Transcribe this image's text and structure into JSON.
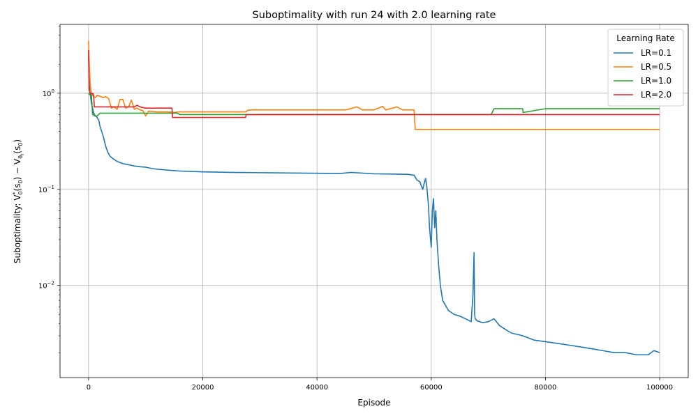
{
  "chart_data": {
    "type": "line",
    "title": "Suboptimality with run 24 with 2.0 learning rate",
    "xlabel": "Episode",
    "ylabel_main": "Suboptimality: V",
    "ylabel_sup": "*",
    "ylabel_sub_0": "0",
    "ylabel_arg1": "(s",
    "ylabel_arg1_sub": "0",
    "ylabel_mid": ") − V",
    "ylabel_sub_theta": "θ",
    "ylabel_sub_t": "t",
    "ylabel_arg2": "(s",
    "ylabel_arg2_sub": "0",
    "ylabel_end": ")",
    "y_scale": "log",
    "xlim": [
      -5000,
      105000
    ],
    "ylim": [
      0.0011,
      5.2
    ],
    "grid": true,
    "legend_title": "Learning Rate",
    "legend_placement": "top-right",
    "x_ticks": [
      0,
      20000,
      40000,
      60000,
      80000,
      100000
    ],
    "x_tick_labels": [
      "0",
      "20000",
      "40000",
      "60000",
      "80000",
      "100000"
    ],
    "y_ticks": [
      0.01,
      0.1,
      1
    ],
    "y_tick_labels": [
      {
        "base": "10",
        "exp": "−2"
      },
      {
        "base": "10",
        "exp": "−1"
      },
      {
        "base": "10",
        "exp": "0"
      }
    ],
    "series": [
      {
        "name": "LR=0.1",
        "color": "#1f77b4",
        "x": [
          0,
          100,
          200,
          350,
          500,
          700,
          900,
          1200,
          1500,
          1800,
          2000,
          2300,
          2600,
          3000,
          3400,
          3800,
          4200,
          5000,
          6000,
          7000,
          8000,
          9000,
          10000,
          11000,
          12000,
          14000,
          16000,
          20000,
          25000,
          30000,
          35000,
          40000,
          44000,
          46000,
          50000,
          54000,
          56000,
          57000,
          57500,
          58000,
          58500,
          59000,
          59200,
          59500,
          59700,
          60000,
          60200,
          60400,
          60600,
          60800,
          61000,
          61300,
          61600,
          62000,
          63000,
          64000,
          65000,
          66000,
          67000,
          67300,
          67500,
          67600,
          67700,
          68000,
          69000,
          70000,
          71000,
          72000,
          74000,
          76000,
          78000,
          80000,
          82000,
          84000,
          86000,
          88000,
          90000,
          92000,
          94000,
          96000,
          98000,
          99000,
          100000
        ],
        "values": [
          2.5,
          1.4,
          1.05,
          0.92,
          0.78,
          0.7,
          0.62,
          0.58,
          0.56,
          0.52,
          0.45,
          0.4,
          0.35,
          0.28,
          0.24,
          0.22,
          0.21,
          0.195,
          0.185,
          0.18,
          0.175,
          0.172,
          0.17,
          0.165,
          0.162,
          0.158,
          0.155,
          0.152,
          0.15,
          0.149,
          0.148,
          0.147,
          0.146,
          0.15,
          0.145,
          0.144,
          0.143,
          0.14,
          0.125,
          0.12,
          0.1,
          0.13,
          0.11,
          0.07,
          0.04,
          0.025,
          0.06,
          0.08,
          0.04,
          0.06,
          0.03,
          0.016,
          0.01,
          0.007,
          0.0055,
          0.005,
          0.0048,
          0.0045,
          0.0042,
          0.008,
          0.022,
          0.005,
          0.0045,
          0.0043,
          0.0041,
          0.0042,
          0.0045,
          0.0038,
          0.0032,
          0.003,
          0.0027,
          0.0026,
          0.0025,
          0.0024,
          0.0023,
          0.0022,
          0.0021,
          0.002,
          0.002,
          0.0019,
          0.0019,
          0.0021,
          0.002
        ]
      },
      {
        "name": "LR=0.5",
        "color": "#ff7f0e",
        "x": [
          0,
          100,
          200,
          300,
          500,
          700,
          900,
          1200,
          1500,
          2000,
          2500,
          3000,
          3500,
          4000,
          4500,
          5000,
          5500,
          6000,
          6500,
          7000,
          7500,
          8000,
          8500,
          9000,
          9500,
          10000,
          10500,
          12000,
          14000,
          15000,
          16000,
          20000,
          25000,
          27500,
          28000,
          30000,
          35000,
          38000,
          40000,
          45000,
          47000,
          48000,
          50000,
          51500,
          52000,
          54000,
          55000,
          56000,
          57000,
          57200,
          60000,
          65000,
          70000,
          75000,
          80000,
          85000,
          90000,
          95000,
          100000
        ],
        "values": [
          3.5,
          2.2,
          1.6,
          1.2,
          1.0,
          0.95,
          0.92,
          0.9,
          0.95,
          0.93,
          0.9,
          0.92,
          0.88,
          0.7,
          0.72,
          0.68,
          0.86,
          0.86,
          0.7,
          0.72,
          0.85,
          0.68,
          0.7,
          0.67,
          0.66,
          0.58,
          0.65,
          0.64,
          0.64,
          0.63,
          0.64,
          0.64,
          0.64,
          0.64,
          0.67,
          0.67,
          0.67,
          0.67,
          0.67,
          0.67,
          0.72,
          0.67,
          0.67,
          0.73,
          0.67,
          0.72,
          0.67,
          0.67,
          0.67,
          0.42,
          0.42,
          0.42,
          0.42,
          0.42,
          0.42,
          0.42,
          0.42,
          0.42,
          0.42
        ]
      },
      {
        "name": "LR=1.0",
        "color": "#2ca02c",
        "x": [
          0,
          100,
          300,
          500,
          700,
          900,
          1000,
          1500,
          2000,
          2200,
          3000,
          5000,
          10000,
          15500,
          16000,
          20000,
          30000,
          40000,
          50000,
          60000,
          70000,
          70500,
          71000,
          76000,
          76100,
          80000,
          90000,
          100000
        ],
        "values": [
          1.0,
          0.98,
          0.96,
          0.95,
          0.6,
          0.6,
          0.58,
          0.58,
          0.62,
          0.62,
          0.62,
          0.62,
          0.62,
          0.62,
          0.6,
          0.6,
          0.6,
          0.6,
          0.6,
          0.6,
          0.6,
          0.6,
          0.69,
          0.69,
          0.63,
          0.69,
          0.69,
          0.69
        ]
      },
      {
        "name": "LR=2.0",
        "color": "#d62728",
        "x": [
          0,
          50,
          100,
          200,
          300,
          500,
          700,
          900,
          1000,
          1500,
          2000,
          3000,
          5000,
          8000,
          8500,
          9000,
          10000,
          12000,
          14600,
          14700,
          20000,
          27500,
          27600,
          30000,
          40000,
          50000,
          60000,
          70000,
          80000,
          90000,
          100000
        ],
        "values": [
          2.8,
          1.5,
          1.1,
          1.05,
          1.0,
          0.98,
          1.0,
          0.95,
          0.72,
          0.72,
          0.72,
          0.72,
          0.72,
          0.72,
          0.75,
          0.72,
          0.7,
          0.7,
          0.7,
          0.56,
          0.56,
          0.56,
          0.6,
          0.6,
          0.6,
          0.6,
          0.6,
          0.6,
          0.6,
          0.6,
          0.6
        ]
      }
    ]
  }
}
